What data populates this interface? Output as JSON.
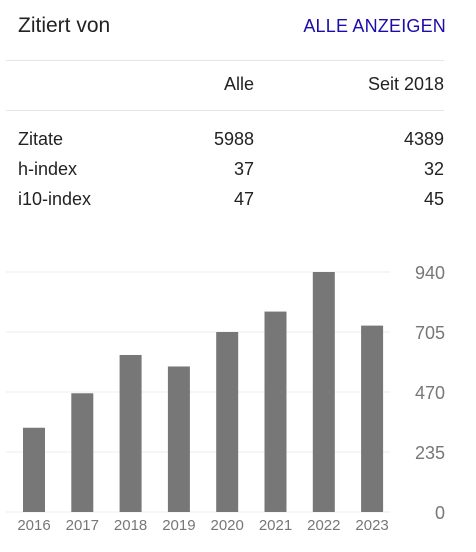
{
  "header": {
    "title": "Zitiert von",
    "show_all_label": "ALLE ANZEIGEN"
  },
  "stats": {
    "columns": [
      "",
      "Alle",
      "Seit 2018"
    ],
    "rows": [
      {
        "label": "Zitate",
        "all": "5988",
        "since": "4389"
      },
      {
        "label": "h-index",
        "all": "37",
        "since": "32"
      },
      {
        "label": "i10-index",
        "all": "47",
        "since": "45"
      }
    ]
  },
  "colors": {
    "bar": "#777777",
    "link": "#1a0dab",
    "grid": "#eeeeee"
  },
  "chart_data": {
    "type": "bar",
    "categories": [
      "2016",
      "2017",
      "2018",
      "2019",
      "2020",
      "2021",
      "2022",
      "2023"
    ],
    "values": [
      330,
      465,
      615,
      570,
      705,
      785,
      940,
      730
    ],
    "yticks": [
      "0",
      "235",
      "470",
      "705",
      "940"
    ],
    "ylim": [
      0,
      940
    ],
    "grid": true
  }
}
